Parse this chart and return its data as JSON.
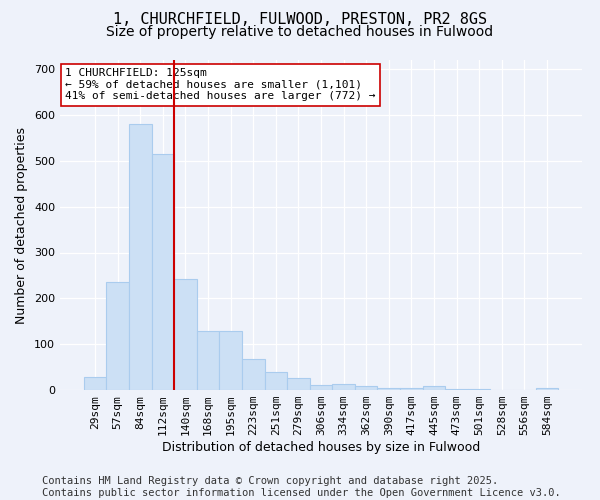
{
  "title": "1, CHURCHFIELD, FULWOOD, PRESTON, PR2 8GS",
  "subtitle": "Size of property relative to detached houses in Fulwood",
  "xlabel": "Distribution of detached houses by size in Fulwood",
  "ylabel": "Number of detached properties",
  "categories": [
    "29sqm",
    "57sqm",
    "84sqm",
    "112sqm",
    "140sqm",
    "168sqm",
    "195sqm",
    "223sqm",
    "251sqm",
    "279sqm",
    "306sqm",
    "334sqm",
    "362sqm",
    "390sqm",
    "417sqm",
    "445sqm",
    "473sqm",
    "501sqm",
    "528sqm",
    "556sqm",
    "584sqm"
  ],
  "values": [
    28,
    235,
    580,
    515,
    242,
    128,
    128,
    68,
    40,
    26,
    10,
    14,
    8,
    5,
    5,
    8,
    2,
    2,
    1,
    1,
    4
  ],
  "bar_color": "#cce0f5",
  "bar_edge_color": "#aaccee",
  "vline_x_index": 3,
  "vline_color": "#cc0000",
  "annotation_text": "1 CHURCHFIELD: 125sqm\n← 59% of detached houses are smaller (1,101)\n41% of semi-detached houses are larger (772) →",
  "annotation_box_color": "#ffffff",
  "annotation_box_edge": "#cc0000",
  "ylim": [
    0,
    720
  ],
  "yticks": [
    0,
    100,
    200,
    300,
    400,
    500,
    600,
    700
  ],
  "background_color": "#eef2fa",
  "grid_color": "#ffffff",
  "footer_text": "Contains HM Land Registry data © Crown copyright and database right 2025.\nContains public sector information licensed under the Open Government Licence v3.0.",
  "title_fontsize": 11,
  "subtitle_fontsize": 10,
  "axis_label_fontsize": 9,
  "tick_fontsize": 8,
  "annotation_fontsize": 8,
  "footer_fontsize": 7.5
}
